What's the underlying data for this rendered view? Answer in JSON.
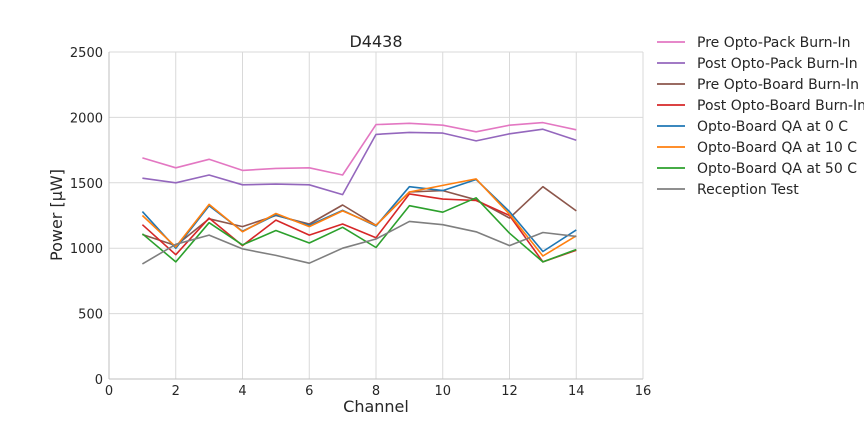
{
  "chart_data": {
    "type": "line",
    "title": "D4438",
    "xlabel": "Channel",
    "ylabel": "Power [μW]",
    "xlim": [
      0,
      16
    ],
    "ylim": [
      0,
      2500
    ],
    "xticks": [
      0,
      2,
      4,
      6,
      8,
      10,
      12,
      14,
      16
    ],
    "yticks": [
      0,
      500,
      1000,
      1500,
      2000,
      2500
    ],
    "grid": true,
    "legend_position": "outside-right-top",
    "x": [
      1,
      2,
      3,
      4,
      5,
      6,
      7,
      8,
      9,
      10,
      11,
      12,
      13,
      14
    ],
    "series": [
      {
        "name": "Pre Opto-Pack Burn-In",
        "color": "#e377c2",
        "values": [
          1690,
          1615,
          1680,
          1595,
          1610,
          1615,
          1560,
          1945,
          1955,
          1940,
          1890,
          1940,
          1960,
          1905
        ]
      },
      {
        "name": "Post Opto-Pack Burn-In",
        "color": "#9467bd",
        "values": [
          1535,
          1500,
          1560,
          1485,
          1490,
          1485,
          1410,
          1870,
          1885,
          1880,
          1820,
          1875,
          1910,
          1825
        ]
      },
      {
        "name": "Pre Opto-Board Burn-In",
        "color": "#8c564b",
        "values": [
          1105,
          1020,
          1225,
          1165,
          1250,
          1185,
          1330,
          1175,
          1430,
          1440,
          1370,
          1230,
          1470,
          1285
        ]
      },
      {
        "name": "Post Opto-Board Burn-In",
        "color": "#d62728",
        "values": [
          1180,
          950,
          1230,
          1020,
          1215,
          1100,
          1185,
          1080,
          1415,
          1375,
          1365,
          1250,
          895,
          985
        ]
      },
      {
        "name": "Opto-Board QA at 0 C",
        "color": "#1f77b4",
        "values": [
          1280,
          1000,
          1325,
          1130,
          1255,
          1175,
          1290,
          1170,
          1470,
          1440,
          1525,
          1280,
          975,
          1140
        ]
      },
      {
        "name": "Opto-Board QA at 10 C",
        "color": "#ff7f0e",
        "values": [
          1250,
          1010,
          1335,
          1125,
          1265,
          1165,
          1285,
          1175,
          1430,
          1480,
          1530,
          1260,
          940,
          1095
        ]
      },
      {
        "name": "Opto-Board QA at 50 C",
        "color": "#2ca02c",
        "values": [
          1110,
          895,
          1195,
          1025,
          1135,
          1040,
          1160,
          1005,
          1325,
          1275,
          1385,
          1115,
          895,
          990
        ]
      },
      {
        "name": "Reception Test",
        "color": "#7f7f7f",
        "values": [
          880,
          1030,
          1100,
          995,
          945,
          885,
          1000,
          1070,
          1205,
          1180,
          1125,
          1020,
          1120,
          1090
        ]
      }
    ]
  }
}
